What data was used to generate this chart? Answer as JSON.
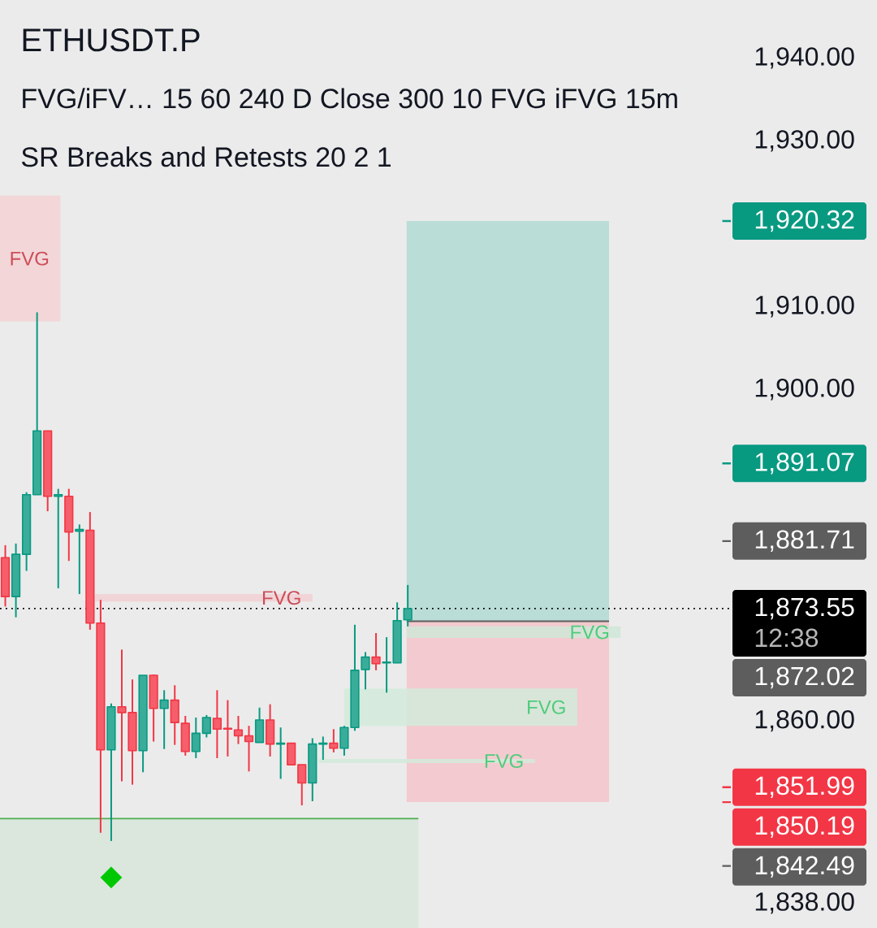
{
  "chart_data": {
    "type": "candlestick",
    "title": "ETHUSDT.P",
    "subtitle": "FVG/iFV… 15 60 240 D Close 300 10 FVG iFVG 15m",
    "annotations": [
      "SR Breaks and Retests 20 2 1",
      "12:38",
      "1,872.02"
    ],
    "categories": [
      null,
      null,
      null,
      null,
      null,
      null,
      null,
      null,
      null,
      null,
      null,
      null,
      null,
      null,
      null,
      null,
      null,
      null,
      null,
      null,
      null,
      null,
      null,
      null,
      null,
      null,
      null,
      null,
      null,
      null,
      null,
      null,
      null,
      null,
      null,
      null,
      null,
      null,
      null,
      null,
      null,
      null,
      null,
      null,
      null,
      null,
      null,
      null,
      null,
      null,
      null,
      null,
      null,
      null,
      null,
      null,
      null,
      null,
      null,
      null,
      null,
      null,
      null,
      null,
      null,
      null,
      null,
      null,
      null
    ],
    "ohlc": [
      [
        1879.7,
        1881.2,
        1873.8,
        1875.0
      ],
      [
        1875.0,
        1881.4,
        1872.5,
        1880.1
      ],
      [
        1880.1,
        1887.6,
        1878.1,
        1887.3
      ],
      [
        1887.3,
        1909.3,
        1887.3,
        1895.0
      ],
      [
        1895.0,
        1895.0,
        1885.3,
        1887.1
      ],
      [
        1887.1,
        1888.0,
        1876.0,
        1887.3
      ],
      [
        1887.1,
        1888.0,
        1879.3,
        1882.8
      ],
      [
        1882.9,
        1883.7,
        1875.3,
        1883.1
      ],
      [
        1883.0,
        1885.2,
        1871.0,
        1871.8
      ],
      [
        1871.8,
        1874.6,
        1846.5,
        1856.5
      ],
      [
        1856.5,
        1862.1,
        1845.5,
        1861.7
      ],
      [
        1861.7,
        1868.6,
        1852.7,
        1861.0
      ],
      [
        1861.0,
        1865.0,
        1852.3,
        1856.4
      ],
      [
        1856.4,
        1865.5,
        1853.8,
        1865.5
      ],
      [
        1865.5,
        1865.6,
        1857.5,
        1861.5
      ],
      [
        1861.5,
        1863.7,
        1856.6,
        1862.5
      ],
      [
        1862.5,
        1864.3,
        1857.1,
        1859.8
      ],
      [
        1859.7,
        1860.6,
        1855.8,
        1856.3
      ],
      [
        1856.3,
        1860.4,
        1855.5,
        1858.5
      ],
      [
        1858.5,
        1860.7,
        1858.0,
        1860.4
      ],
      [
        1860.3,
        1863.7,
        1855.5,
        1859.0
      ],
      [
        1859.1,
        1862.5,
        1855.7,
        1859.0
      ],
      [
        1858.9,
        1860.6,
        1857.2,
        1858.2
      ],
      [
        1858.2,
        1859.4,
        1853.9,
        1857.5
      ],
      [
        1857.4,
        1861.6,
        1857.4,
        1860.1
      ],
      [
        1860.1,
        1862.0,
        1855.7,
        1857.2
      ],
      [
        1857.2,
        1859.2,
        1853.0,
        1857.3
      ],
      [
        1857.3,
        1857.3,
        1854.7,
        1854.7
      ],
      [
        1854.7,
        1854.7,
        1849.8,
        1852.5
      ],
      [
        1852.5,
        1857.9,
        1850.3,
        1857.2
      ],
      [
        1857.2,
        1858.1,
        1855.3,
        1857.3
      ],
      [
        1857.3,
        1859.0,
        1856.2,
        1856.7
      ],
      [
        1856.7,
        1859.4,
        1855.8,
        1859.2
      ],
      [
        1859.2,
        1871.6,
        1858.8,
        1866.1
      ],
      [
        1866.2,
        1868.3,
        1863.8,
        1867.7
      ],
      [
        1867.7,
        1870.6,
        1866.1,
        1866.9
      ],
      [
        1867.0,
        1870.1,
        1863.4,
        1867.1
      ],
      [
        1867.0,
        1874.3,
        1867.0,
        1872.1
      ],
      [
        1872.2,
        1876.4,
        1871.4,
        1873.55
      ],
      null,
      null,
      null,
      null,
      null,
      null,
      null,
      null,
      null,
      null,
      null,
      null,
      null,
      null,
      null,
      null,
      null,
      null,
      null,
      null,
      null,
      null,
      null,
      null,
      null,
      null,
      null,
      null,
      null,
      null
    ],
    "colors": [
      "#f23645",
      "#089981",
      "#089981",
      "#089981",
      "#f23645",
      "#089981",
      "#f23645",
      "#089981",
      "#f23645",
      "#f23645",
      "#089981",
      "#f23645",
      "#f23645",
      "#089981",
      "#f23645",
      "#089981",
      "#f23645",
      "#f23645",
      "#089981",
      "#089981",
      "#f23645",
      "#f23645",
      "#f23645",
      "#f23645",
      "#089981",
      "#f23645",
      "#089981",
      "#f23645",
      "#f23645",
      "#089981",
      "#089981",
      "#f23645",
      "#089981",
      "#089981",
      "#089981",
      "#f23645",
      "#089981",
      "#089981",
      "#089981",
      null,
      null,
      null,
      null,
      null,
      null,
      null,
      null,
      null,
      null,
      null,
      null,
      null,
      null,
      null,
      null,
      null,
      null,
      null,
      null,
      null,
      null,
      null,
      null,
      null,
      null,
      null,
      null,
      null,
      null
    ],
    "series": [
      {
        "type": "scatter",
        "color": "#00c800",
        "marker": "diamond",
        "values": [
          null,
          null,
          null,
          null,
          null,
          null,
          null,
          null,
          null,
          null,
          1841.1,
          null,
          null,
          null,
          null,
          null,
          null,
          null,
          null,
          null,
          null,
          null,
          null,
          null,
          null,
          null,
          null,
          null,
          null,
          null,
          null,
          null,
          null,
          null,
          null,
          null,
          null,
          null,
          null,
          null,
          null,
          null,
          null,
          null,
          null,
          null,
          null,
          null,
          null,
          null,
          null,
          null,
          null,
          null,
          null,
          null,
          null,
          null,
          null,
          null,
          null,
          null,
          null,
          null,
          null,
          null,
          null,
          null,
          null
        ]
      }
    ],
    "ylim": [
      1835,
      1947
    ],
    "yticks": [
      {
        "value": 1940,
        "label": "1,940.00"
      },
      {
        "value": 1930,
        "label": "1,930.00"
      },
      {
        "value": 1910,
        "label": "1,910.00"
      },
      {
        "value": 1900,
        "label": "1,900.00"
      },
      {
        "value": 1860,
        "label": "1,860.00"
      },
      {
        "value": 1838,
        "label": "1,838.00"
      }
    ],
    "tick_labels": "y",
    "ref_lines": [
      {
        "axis": "y",
        "value": 1920.32,
        "label": "1,920.32",
        "color": "#089981"
      },
      {
        "axis": "y",
        "value": 1891.07,
        "label": "1,891.07",
        "color": "#089981"
      },
      {
        "axis": "y",
        "value": 1881.71,
        "label": "1,881.71",
        "color": "#5d5d5d"
      },
      {
        "axis": "y",
        "value": 1873.55,
        "label": "1,873.55",
        "color": "#000000",
        "line_style": "dotted"
      },
      {
        "axis": "y",
        "value": 1872.02,
        "color": "#5d5d5d",
        "line_style": "solid"
      },
      {
        "axis": "y",
        "value": 1851.99,
        "label": "1,851.99",
        "color": "#f23645"
      },
      {
        "axis": "y",
        "value": 1850.19,
        "label": "1,850.19",
        "color": "#f23645"
      },
      {
        "axis": "y",
        "value": 1848.2,
        "color": "#4caf50",
        "line_style": "solid"
      },
      {
        "axis": "y",
        "value": 1842.49,
        "label": "1,842.49",
        "color": "#5d5d5d"
      }
    ],
    "bands": [
      {
        "axis": "y",
        "from": 1908.2,
        "to": 1923.4,
        "label": "FVG",
        "color": "#f5d2d5"
      },
      {
        "axis": "y",
        "from": 1874.4,
        "to": 1875.3,
        "label": "FVG",
        "color": "#f2d0d3"
      },
      {
        "axis": "y",
        "from": 1872.02,
        "to": 1920.32,
        "color": "#b2dbd4"
      },
      {
        "axis": "y",
        "from": 1850.19,
        "to": 1872.02,
        "color": "#f5c4ca"
      },
      {
        "axis": "y",
        "from": 1870.0,
        "to": 1871.4,
        "label": "FVG",
        "color": "#cfe8d8"
      },
      {
        "axis": "y",
        "from": 1859.4,
        "to": 1863.9,
        "label": "FVG",
        "color": "#d2ebdb"
      },
      {
        "axis": "y",
        "from": 1854.9,
        "to": 1855.4,
        "label": "FVG",
        "color": "#d2ebdb"
      },
      {
        "axis": "y",
        "from": 1835,
        "to": 1848.2,
        "color": "#d8e5da"
      }
    ]
  }
}
